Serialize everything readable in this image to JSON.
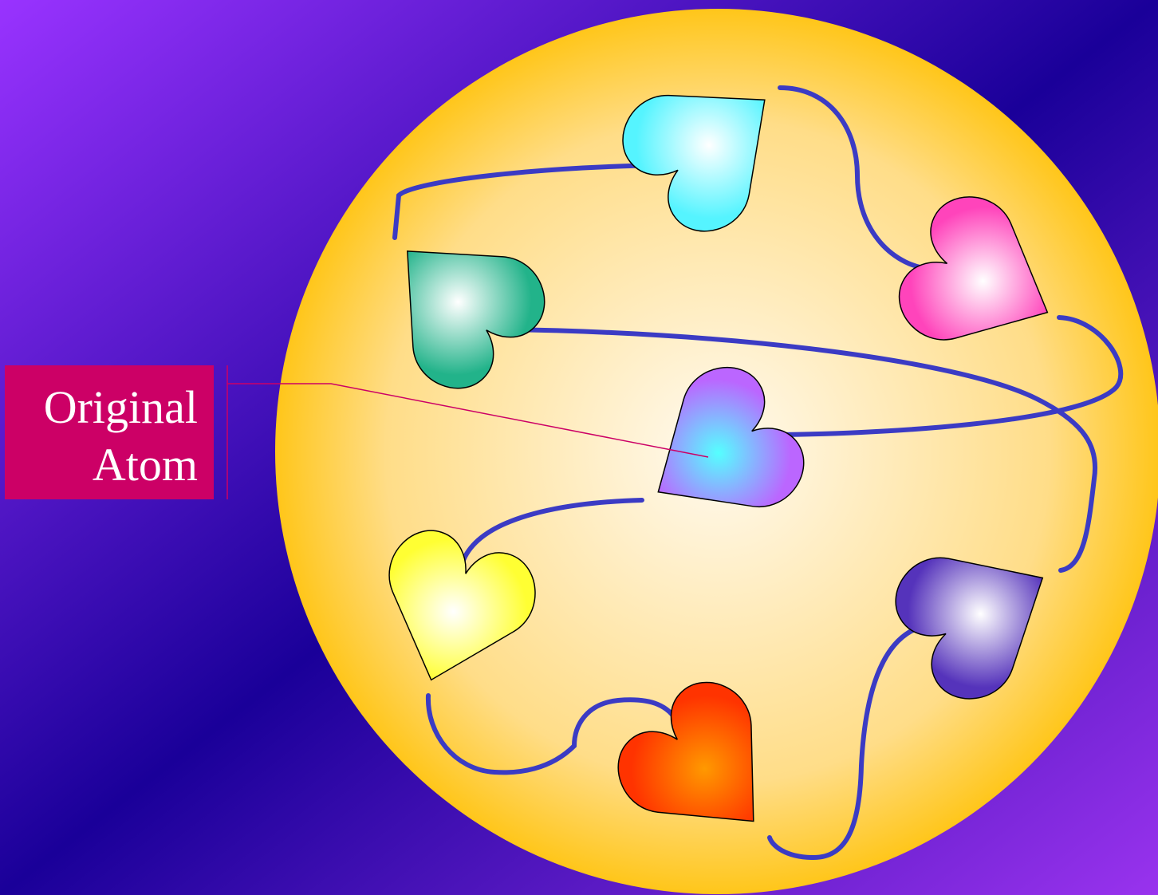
{
  "callout": {
    "lines": [
      "Original",
      "Atom"
    ]
  }
}
